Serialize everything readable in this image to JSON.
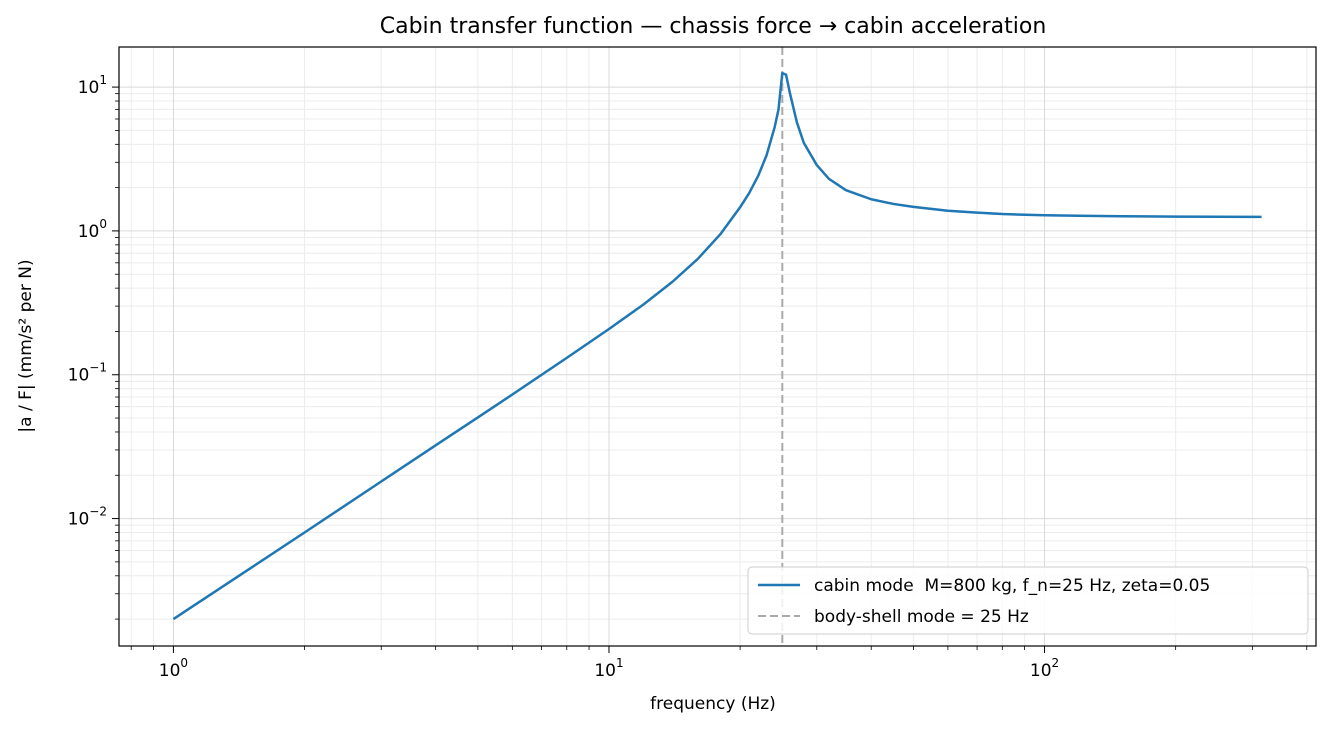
{
  "chart_data": {
    "type": "line",
    "title": "Cabin transfer function — chassis force → cabin acceleration",
    "xlabel": "frequency (Hz)",
    "ylabel": "|a / F|   (mm/s² per N)",
    "xscale": "log",
    "yscale": "log",
    "xlim": [
      0.75,
      420
    ],
    "ylim": [
      0.0013,
      19
    ],
    "grid": "both major and minor",
    "legend_position": "lower-right",
    "x_ticks": [
      {
        "value": 1,
        "base": "10",
        "exp": "0"
      },
      {
        "value": 10,
        "base": "10",
        "exp": "1"
      },
      {
        "value": 100,
        "base": "10",
        "exp": "2"
      }
    ],
    "y_ticks": [
      {
        "value": 0.01,
        "base": "10",
        "exp": "−2"
      },
      {
        "value": 0.1,
        "base": "10",
        "exp": "−1"
      },
      {
        "value": 1,
        "base": "10",
        "exp": "0"
      },
      {
        "value": 10,
        "base": "10",
        "exp": "1"
      }
    ],
    "series": [
      {
        "name": "cabin mode  M=800 kg, f_n=25 Hz, zeta=0.05",
        "color": "#1f77b4",
        "style": "solid",
        "x": [
          1,
          1.5,
          2,
          3,
          4,
          5,
          6,
          8,
          10,
          12,
          14,
          16,
          18,
          20,
          21,
          22,
          23,
          24,
          24.5,
          25,
          25.5,
          26,
          27,
          28,
          30,
          32,
          35,
          40,
          45,
          50,
          60,
          70,
          80,
          100,
          120,
          150,
          200,
          250,
          300,
          315
        ],
        "y": [
          0.002,
          0.0045,
          0.008,
          0.0181,
          0.0323,
          0.0505,
          0.0729,
          0.131,
          0.208,
          0.308,
          0.444,
          0.64,
          0.945,
          1.46,
          1.84,
          2.41,
          3.35,
          5.24,
          6.98,
          12.5,
          12.2,
          9.2,
          5.7,
          4.1,
          2.87,
          2.3,
          1.92,
          1.66,
          1.54,
          1.47,
          1.38,
          1.34,
          1.31,
          1.285,
          1.275,
          1.265,
          1.258,
          1.255,
          1.253,
          1.252
        ]
      },
      {
        "name": "body-shell mode = 25 Hz",
        "color": "#aaaaaa",
        "style": "dashed",
        "x_value": 25
      }
    ]
  }
}
